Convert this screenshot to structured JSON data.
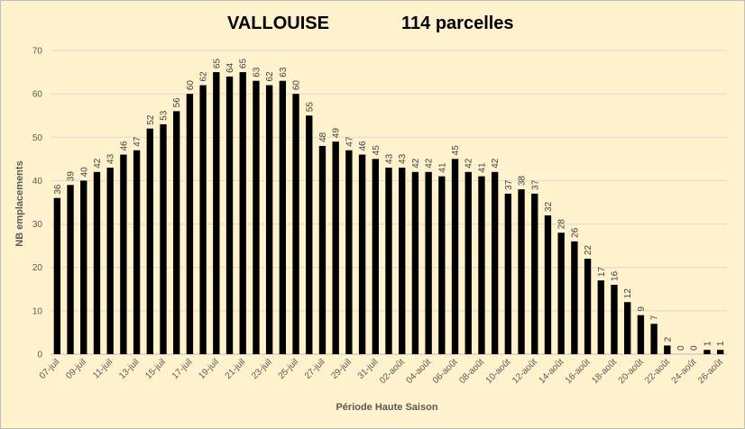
{
  "chart_data": {
    "type": "bar",
    "title": "VALLOUISE",
    "subtitle": "114 parcelles",
    "xlabel": "Période Haute Saison",
    "ylabel": "NB emplacements",
    "ylim": [
      0,
      70
    ],
    "yticks": [
      0,
      10,
      20,
      30,
      40,
      50,
      60,
      70
    ],
    "grid": true,
    "bar_color": "#000000",
    "background_color": "#fff2cc",
    "categories": [
      "07-juil",
      "08-juil",
      "09-juil",
      "10-juil",
      "11-juil",
      "12-juil",
      "13-juil",
      "14-juil",
      "15-juil",
      "16-juil",
      "17-juil",
      "18-juil",
      "19-juil",
      "20-juil",
      "21-juil",
      "22-juil",
      "23-juil",
      "24-juil",
      "25-juil",
      "26-juil",
      "27-juil",
      "28-juil",
      "29-juil",
      "30-juil",
      "31-juil",
      "01-août",
      "02-août",
      "03-août",
      "04-août",
      "05-août",
      "06-août",
      "07-août",
      "08-août",
      "09-août",
      "10-août",
      "11-août",
      "12-août",
      "13-août",
      "14-août",
      "15-août",
      "16-août",
      "17-août",
      "18-août",
      "19-août",
      "20-août",
      "21-août",
      "22-août",
      "23-août",
      "24-août",
      "25-août",
      "26-août"
    ],
    "tick_labels": [
      "07-juil",
      "09-juil",
      "11-juil",
      "13-juil",
      "15-juil",
      "17-juil",
      "19-juil",
      "21-juil",
      "23-juil",
      "25-juil",
      "27-juil",
      "29-juil",
      "31-juil",
      "02-août",
      "04-août",
      "06-août",
      "08-août",
      "10-août",
      "12-août",
      "14-août",
      "16-août",
      "18-août",
      "20-août",
      "22-août",
      "24-août",
      "26-août"
    ],
    "values": [
      36,
      39,
      40,
      42,
      43,
      46,
      47,
      52,
      53,
      56,
      60,
      62,
      65,
      64,
      65,
      63,
      62,
      63,
      60,
      55,
      48,
      49,
      47,
      46,
      45,
      43,
      43,
      42,
      42,
      41,
      45,
      42,
      41,
      42,
      37,
      38,
      37,
      32,
      28,
      26,
      22,
      17,
      16,
      12,
      9,
      7,
      2,
      0,
      0,
      1,
      1
    ]
  }
}
